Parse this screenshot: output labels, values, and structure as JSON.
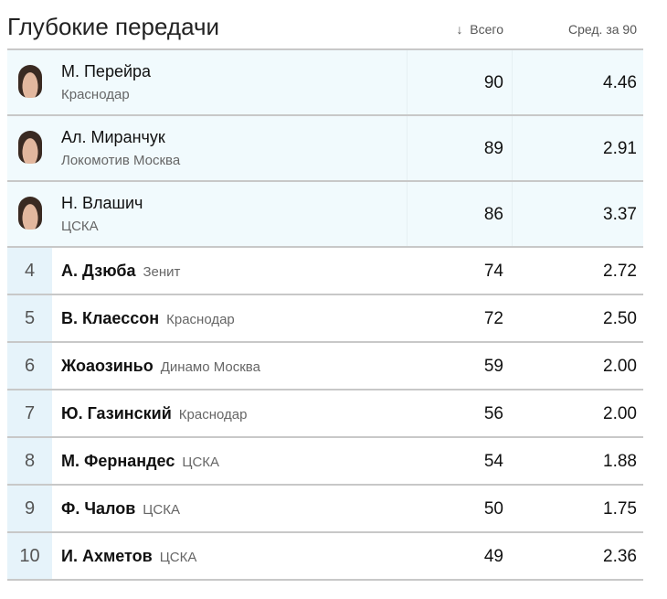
{
  "title": "Глубокие передачи",
  "columns": {
    "sort_icon": "↓",
    "total": "Всего",
    "per90": "Сред. за 90"
  },
  "colors": {
    "top_row_bg": "#f1fafd",
    "rank_bg": "#e6f3fa"
  },
  "top": [
    {
      "name": "М. Перейра",
      "club": "Краснодар",
      "total": "90",
      "per90": "4.46"
    },
    {
      "name": "Ал. Миранчук",
      "club": "Локомотив Москва",
      "total": "89",
      "per90": "2.91"
    },
    {
      "name": "Н. Влашич",
      "club": "ЦСКА",
      "total": "86",
      "per90": "3.37"
    }
  ],
  "rows": [
    {
      "rank": "4",
      "name": "А. Дзюба",
      "club": "Зенит",
      "total": "74",
      "per90": "2.72"
    },
    {
      "rank": "5",
      "name": "В. Клаессон",
      "club": "Краснодар",
      "total": "72",
      "per90": "2.50"
    },
    {
      "rank": "6",
      "name": "Жоаозиньо",
      "club": "Динамо Москва",
      "total": "59",
      "per90": "2.00"
    },
    {
      "rank": "7",
      "name": "Ю. Газинский",
      "club": "Краснодар",
      "total": "56",
      "per90": "2.00"
    },
    {
      "rank": "8",
      "name": "М. Фернандес",
      "club": "ЦСКА",
      "total": "54",
      "per90": "1.88"
    },
    {
      "rank": "9",
      "name": "Ф. Чалов",
      "club": "ЦСКА",
      "total": "50",
      "per90": "1.75"
    },
    {
      "rank": "10",
      "name": "И. Ахметов",
      "club": "ЦСКА",
      "total": "49",
      "per90": "2.36"
    }
  ]
}
